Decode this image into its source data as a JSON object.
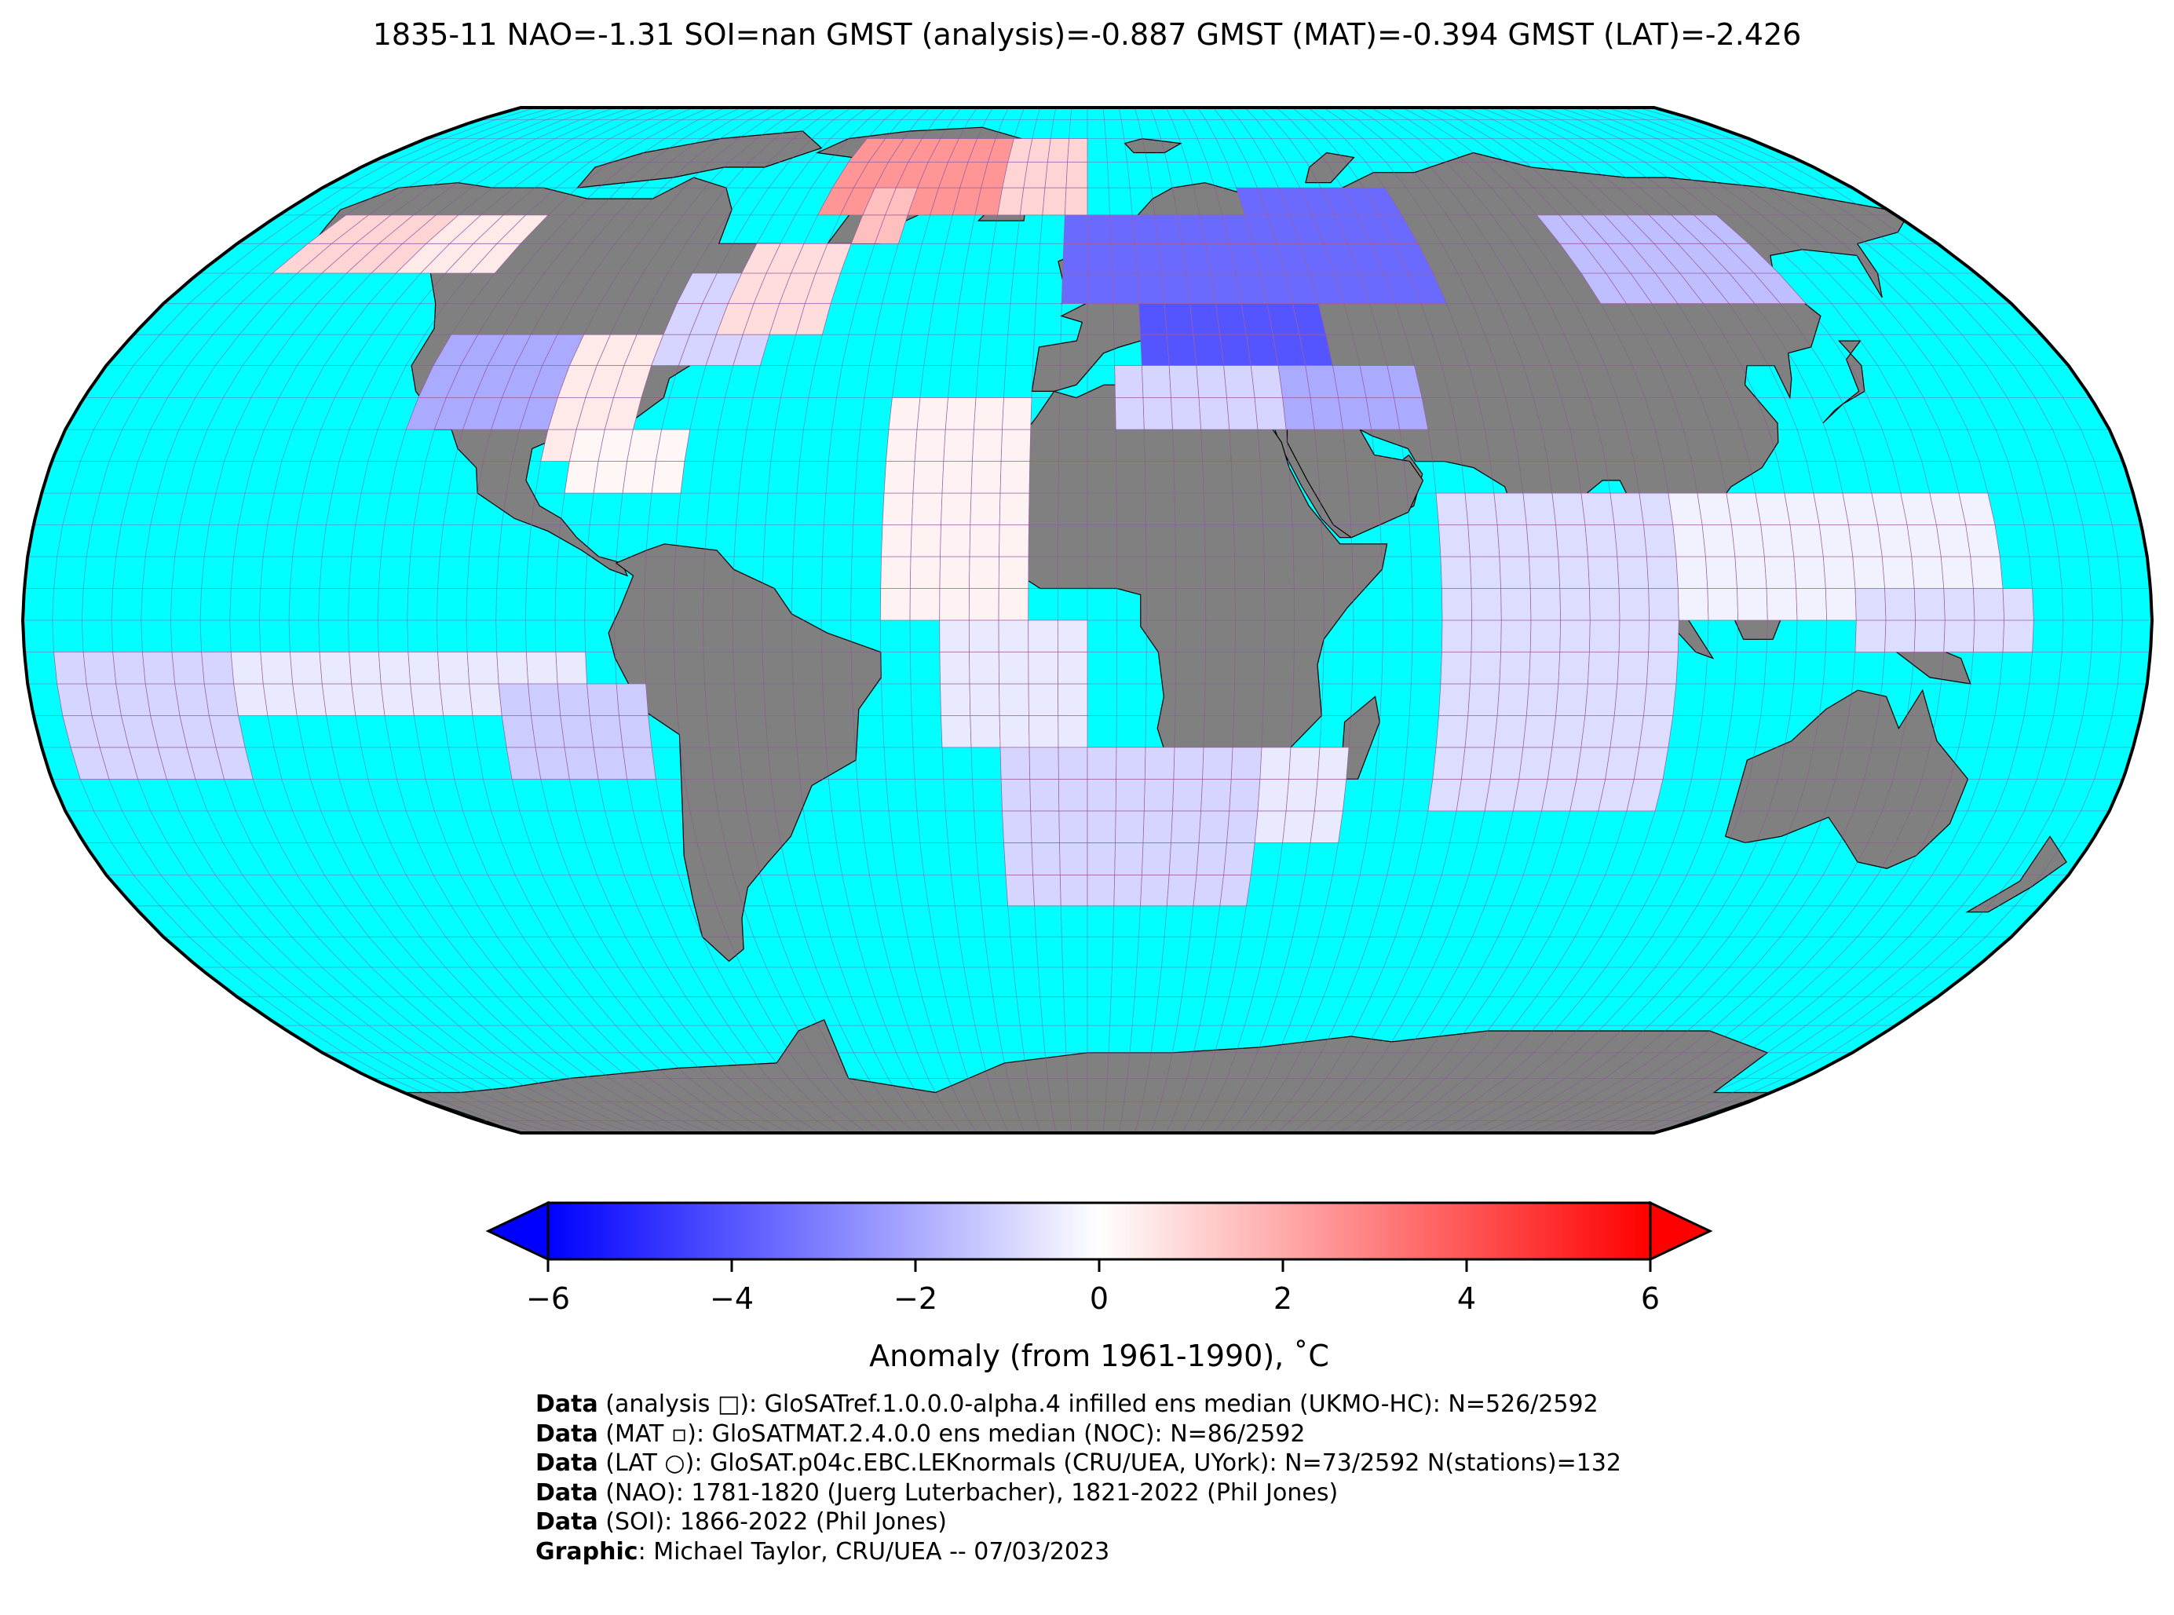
{
  "title": "1835-11 NAO=-1.31 SOI=nan GMST (analysis)=-0.887 GMST (MAT)=-0.394 GMST (LAT)=-2.426",
  "colors": {
    "ocean": "#00ffff",
    "land": "#808080",
    "coast": "#000000",
    "grid": "#8a4d9c",
    "border": "#000000"
  },
  "colorbar": {
    "ticks": [
      "−6",
      "−4",
      "−2",
      "0",
      "2",
      "4",
      "6"
    ],
    "tick_values": [
      -6,
      -4,
      -2,
      0,
      2,
      4,
      6
    ],
    "range": [
      -6,
      6
    ],
    "label": "Anomaly (from 1961-1990), ˚C",
    "cmap": [
      "#0000ff",
      "#ffffff",
      "#ff0000"
    ]
  },
  "credits": [
    {
      "bold": "Data",
      "text": " (analysis □): GloSATref.1.0.0.0-alpha.4 infilled ens median (UKMO-HC): N=526/2592"
    },
    {
      "bold": "Data",
      "text": " (MAT ▫): GloSATMAT.2.4.0.0 ens median (NOC): N=86/2592"
    },
    {
      "bold": "Data",
      "text": " (LAT ○): GloSAT.p04c.EBC.LEKnormals (CRU/UEA, UYork): N=73/2592 N(stations)=132"
    },
    {
      "bold": "Data",
      "text": " (NAO): 1781-1820 (Juerg Luterbacher), 1821-2022 (Phil Jones)"
    },
    {
      "bold": "Data",
      "text": " (SOI): 1866-2022 (Phil Jones)"
    },
    {
      "bold": "Graphic",
      "text": ": Michael Taylor, CRU/UEA -- 07/03/2023"
    }
  ],
  "map_data": {
    "projection": "Robinson",
    "grid_resolution_deg": 5,
    "anomaly_cells": [
      {
        "lon": [
          -165,
          -140
        ],
        "lat": [
          55,
          65
        ],
        "value": 1.0
      },
      {
        "lon": [
          -140,
          -120
        ],
        "lat": [
          55,
          65
        ],
        "value": 0.5
      },
      {
        "lon": [
          -60,
          -20
        ],
        "lat": [
          65,
          80
        ],
        "value": 2.5
      },
      {
        "lon": [
          -50,
          -40
        ],
        "lat": [
          60,
          70
        ],
        "value": 1.5
      },
      {
        "lon": [
          -20,
          0
        ],
        "lat": [
          65,
          80
        ],
        "value": 1.0
      },
      {
        "lon": [
          -120,
          -95
        ],
        "lat": [
          30,
          45
        ],
        "value": -2.0
      },
      {
        "lon": [
          -95,
          -80
        ],
        "lat": [
          25,
          45
        ],
        "value": 0.5
      },
      {
        "lon": [
          -80,
          -60
        ],
        "lat": [
          40,
          55
        ],
        "value": -1.0
      },
      {
        "lon": [
          -70,
          -50
        ],
        "lat": [
          45,
          60
        ],
        "value": 0.8
      },
      {
        "lon": [
          -90,
          -70
        ],
        "lat": [
          20,
          30
        ],
        "value": 0.2
      },
      {
        "lon": [
          -5,
          35
        ],
        "lat": [
          50,
          65
        ],
        "value": -3.5
      },
      {
        "lon": [
          35,
          70
        ],
        "lat": [
          50,
          70
        ],
        "value": -3.5
      },
      {
        "lon": [
          10,
          45
        ],
        "lat": [
          40,
          50
        ],
        "value": -4.0
      },
      {
        "lon": [
          30,
          60
        ],
        "lat": [
          30,
          40
        ],
        "value": -2.0
      },
      {
        "lon": [
          5,
          35
        ],
        "lat": [
          30,
          40
        ],
        "value": -1.0
      },
      {
        "lon": [
          100,
          140
        ],
        "lat": [
          50,
          65
        ],
        "value": -1.5
      },
      {
        "lon": [
          -35,
          -10
        ],
        "lat": [
          0,
          35
        ],
        "value": 0.3
      },
      {
        "lon": [
          -25,
          0
        ],
        "lat": [
          -20,
          0
        ],
        "value": -0.5
      },
      {
        "lon": [
          -15,
          30
        ],
        "lat": [
          -45,
          -20
        ],
        "value": -1.0
      },
      {
        "lon": [
          -175,
          -145
        ],
        "lat": [
          -25,
          -5
        ],
        "value": -1.0
      },
      {
        "lon": [
          -145,
          -85
        ],
        "lat": [
          -15,
          -5
        ],
        "value": -0.5
      },
      {
        "lon": [
          -100,
          -75
        ],
        "lat": [
          -25,
          -10
        ],
        "value": -1.2
      },
      {
        "lon": [
          60,
          100
        ],
        "lat": [
          -30,
          20
        ],
        "value": -0.8
      },
      {
        "lon": [
          100,
          155
        ],
        "lat": [
          0,
          20
        ],
        "value": -0.3
      },
      {
        "lon": [
          130,
          160
        ],
        "lat": [
          -5,
          5
        ],
        "value": -0.8
      },
      {
        "lon": [
          30,
          45
        ],
        "lat": [
          -35,
          -20
        ],
        "value": -0.5
      }
    ]
  }
}
